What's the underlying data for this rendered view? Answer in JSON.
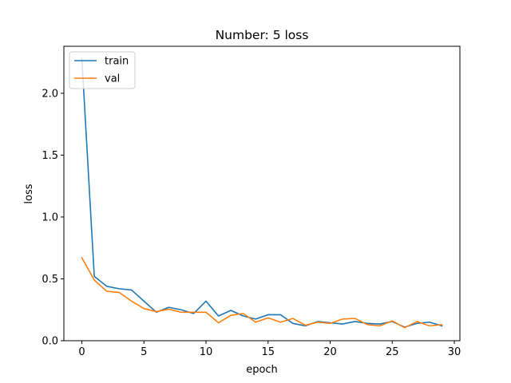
{
  "chart_data": {
    "type": "line",
    "title": "Number: 5 loss",
    "xlabel": "epoch",
    "ylabel": "loss",
    "xlim": [
      -1.45,
      30.45
    ],
    "ylim": [
      0,
      2.38
    ],
    "xticks": [
      0,
      5,
      10,
      15,
      20,
      25,
      30
    ],
    "yticks": [
      0.0,
      0.5,
      1.0,
      1.5,
      2.0
    ],
    "xtick_labels": [
      "0",
      "5",
      "10",
      "15",
      "20",
      "25",
      "30"
    ],
    "ytick_labels": [
      "0.0",
      "0.5",
      "1.0",
      "1.5",
      "2.0"
    ],
    "grid": false,
    "legend_position": "upper left",
    "x": [
      0,
      1,
      2,
      3,
      4,
      5,
      6,
      7,
      8,
      9,
      10,
      11,
      12,
      13,
      14,
      15,
      16,
      17,
      18,
      19,
      20,
      21,
      22,
      23,
      24,
      25,
      26,
      27,
      28,
      29
    ],
    "series": [
      {
        "name": "train",
        "color": "#1f77b4",
        "values": [
          2.28,
          0.52,
          0.44,
          0.42,
          0.41,
          0.32,
          0.23,
          0.27,
          0.25,
          0.22,
          0.32,
          0.2,
          0.245,
          0.2,
          0.175,
          0.21,
          0.21,
          0.14,
          0.12,
          0.155,
          0.145,
          0.135,
          0.155,
          0.14,
          0.135,
          0.155,
          0.11,
          0.14,
          0.15,
          0.12
        ]
      },
      {
        "name": "val",
        "color": "#ff7f0e",
        "values": [
          0.67,
          0.49,
          0.4,
          0.39,
          0.32,
          0.26,
          0.235,
          0.255,
          0.23,
          0.23,
          0.23,
          0.145,
          0.205,
          0.22,
          0.15,
          0.185,
          0.15,
          0.18,
          0.125,
          0.15,
          0.14,
          0.175,
          0.18,
          0.13,
          0.12,
          0.16,
          0.105,
          0.155,
          0.12,
          0.13
        ]
      }
    ]
  }
}
